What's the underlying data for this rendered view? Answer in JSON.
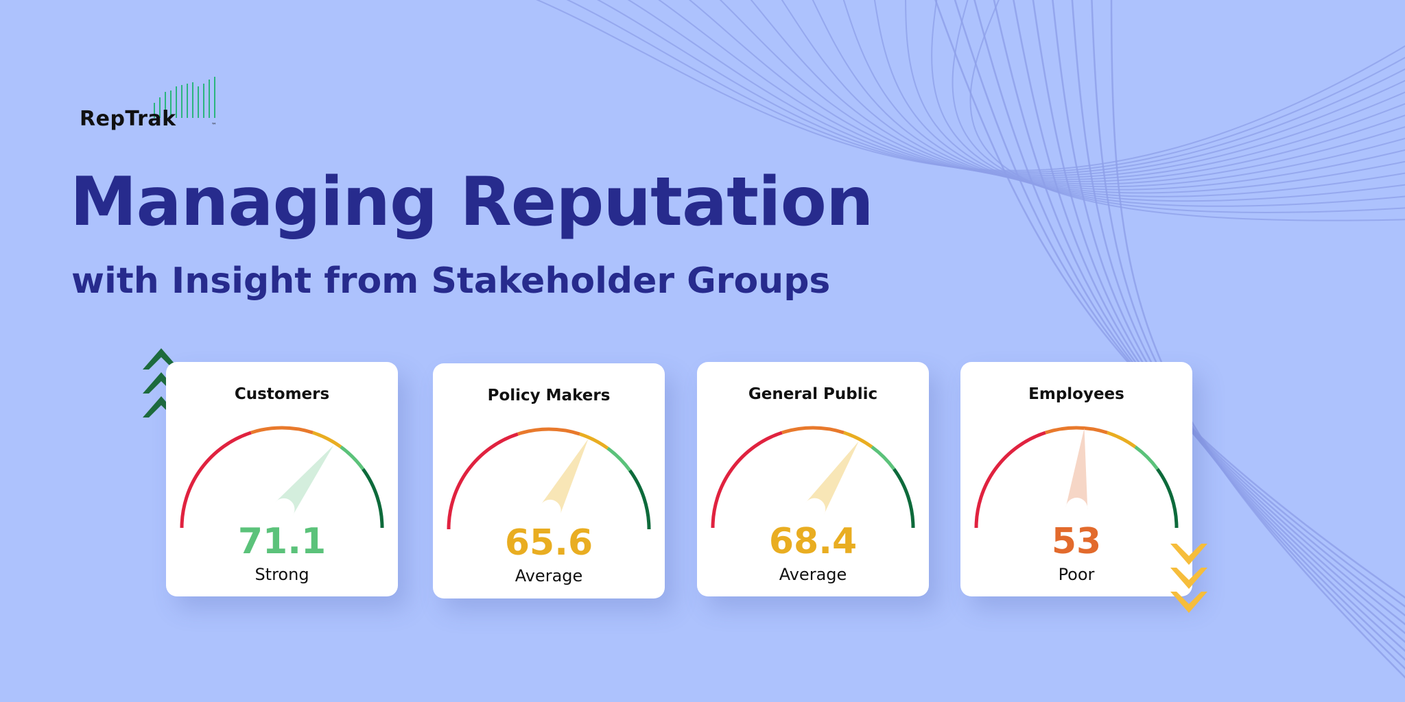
{
  "logo": {
    "text": "RepTrak",
    "tm": "™"
  },
  "headline": {
    "title": "Managing Reputation",
    "subtitle": "with Insight from Stakeholder Groups"
  },
  "colors": {
    "background": "#adc2fd",
    "title": "#272b8d",
    "logo_bars": "#2bb57d",
    "up_chevrons": "#1d6b3d",
    "down_chevrons": "#f6bd3b",
    "gauge_red": "#e0223f",
    "gauge_orange": "#e8792c",
    "gauge_yellow": "#e9ad21",
    "gauge_light_green": "#5bc27a",
    "gauge_dark_green": "#0d6a3b"
  },
  "indicators": {
    "up": {
      "icon": "chevron-up-triple-icon",
      "color": "#1d6b3d"
    },
    "down": {
      "icon": "chevron-down-triple-icon",
      "color": "#f6bd3b"
    }
  },
  "chart_data": {
    "type": "gauge",
    "range": [
      0,
      100
    ],
    "gauges": [
      {
        "label": "Customers",
        "value": 71.1,
        "display": "71.1",
        "rating": "Strong",
        "color": "#5bc27a",
        "needle_color": "#d4eedd"
      },
      {
        "label": "Policy Makers",
        "value": 65.6,
        "display": "65.6",
        "rating": "Average",
        "color": "#e9ad21",
        "needle_color": "#f8e6b6"
      },
      {
        "label": "General Public",
        "value": 68.4,
        "display": "68.4",
        "rating": "Average",
        "color": "#e9ad21",
        "needle_color": "#f8e6b6"
      },
      {
        "label": "Employees",
        "value": 53,
        "display": "53",
        "rating": "Poor",
        "color": "#e26a2c",
        "needle_color": "#f6d6c6"
      }
    ]
  }
}
